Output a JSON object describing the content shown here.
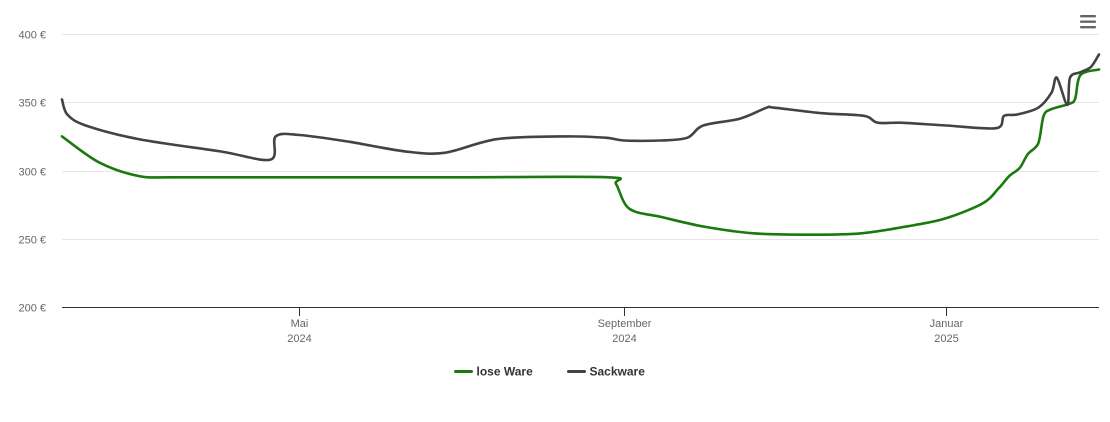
{
  "chart_data": {
    "type": "line",
    "title": "",
    "xlabel": "",
    "ylabel": "",
    "ylim": [
      200,
      400
    ],
    "y_ticks": [
      200,
      250,
      300,
      350,
      400
    ],
    "y_tick_labels": [
      "200 €",
      "250 €",
      "300 €",
      "350 €",
      "400 €"
    ],
    "x_range": [
      "2024-02-01",
      "2025-02-28"
    ],
    "x_ticks": [
      {
        "date": "2024-05-01",
        "label": "Mai",
        "year": "2024"
      },
      {
        "date": "2024-09-01",
        "label": "September",
        "year": "2024"
      },
      {
        "date": "2025-01-01",
        "label": "Januar",
        "year": "2025"
      }
    ],
    "grid": "horizontal",
    "legend_position": "bottom-center",
    "series": [
      {
        "name": "lose Ware",
        "color": "#1a7a0e",
        "points": [
          [
            "2024-02-01",
            325
          ],
          [
            "2024-02-15",
            306
          ],
          [
            "2024-03-01",
            296
          ],
          [
            "2024-03-15",
            295
          ],
          [
            "2024-05-01",
            295
          ],
          [
            "2024-07-01",
            295
          ],
          [
            "2024-08-26",
            295
          ],
          [
            "2024-08-29",
            290
          ],
          [
            "2024-09-03",
            272
          ],
          [
            "2024-09-15",
            266
          ],
          [
            "2024-10-01",
            259
          ],
          [
            "2024-10-20",
            254
          ],
          [
            "2024-11-10",
            253
          ],
          [
            "2024-11-30",
            254
          ],
          [
            "2024-12-20",
            260
          ],
          [
            "2025-01-01",
            265
          ],
          [
            "2025-01-15",
            276
          ],
          [
            "2025-01-21",
            287
          ],
          [
            "2025-01-25",
            296
          ],
          [
            "2025-01-29",
            302
          ],
          [
            "2025-02-01",
            312
          ],
          [
            "2025-02-05",
            320
          ],
          [
            "2025-02-07",
            340
          ],
          [
            "2025-02-10",
            345
          ],
          [
            "2025-02-17",
            349
          ],
          [
            "2025-02-19",
            353
          ],
          [
            "2025-02-21",
            370
          ],
          [
            "2025-02-28",
            374
          ]
        ]
      },
      {
        "name": "Sackware",
        "color": "#434343",
        "points": [
          [
            "2024-02-01",
            352
          ],
          [
            "2024-02-03",
            341
          ],
          [
            "2024-02-10",
            333
          ],
          [
            "2024-03-01",
            323
          ],
          [
            "2024-04-01",
            314
          ],
          [
            "2024-04-20",
            308
          ],
          [
            "2024-04-22",
            325
          ],
          [
            "2024-05-01",
            326
          ],
          [
            "2024-05-20",
            321
          ],
          [
            "2024-06-10",
            314
          ],
          [
            "2024-06-25",
            313
          ],
          [
            "2024-07-15",
            323
          ],
          [
            "2024-08-10",
            325
          ],
          [
            "2024-08-25",
            324
          ],
          [
            "2024-09-01",
            322
          ],
          [
            "2024-09-15",
            322
          ],
          [
            "2024-09-25",
            324
          ],
          [
            "2024-10-01",
            333
          ],
          [
            "2024-10-15",
            338
          ],
          [
            "2024-10-25",
            346
          ],
          [
            "2024-10-28",
            346
          ],
          [
            "2024-11-15",
            342
          ],
          [
            "2024-12-01",
            340
          ],
          [
            "2024-12-06",
            335
          ],
          [
            "2024-12-15",
            335
          ],
          [
            "2025-01-01",
            333
          ],
          [
            "2025-01-20",
            331
          ],
          [
            "2025-01-23",
            340
          ],
          [
            "2025-01-28",
            341
          ],
          [
            "2025-02-05",
            346
          ],
          [
            "2025-02-10",
            357
          ],
          [
            "2025-02-12",
            368
          ],
          [
            "2025-02-16",
            348
          ],
          [
            "2025-02-17",
            368
          ],
          [
            "2025-02-21",
            372
          ],
          [
            "2025-02-25",
            376
          ],
          [
            "2025-02-28",
            385
          ]
        ]
      }
    ]
  },
  "ui": {
    "menu_icon": "hamburger-menu-icon"
  }
}
